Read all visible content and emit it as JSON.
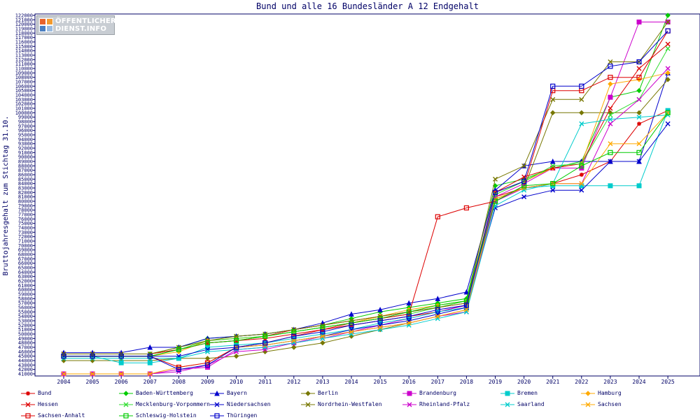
{
  "logo": {
    "line1": "ÖFFENTLICHER",
    "line2": "DIENST.INFO",
    "colors": [
      "#e8632b",
      "#f39a2e",
      "#4a7fc1",
      "#9bbbe0"
    ]
  },
  "chart_data": {
    "type": "line",
    "title": "Bund und alle 16 Bundesländer A 12 Endgehalt",
    "xlabel": "",
    "ylabel": "Bruttojahresgehalt zum Stichtag 31.10.",
    "ylim": [
      41000,
      122000
    ],
    "ytick_step": 1000,
    "grid": false,
    "legend_position": "bottom",
    "x": [
      "2004",
      "2005",
      "2006",
      "2007",
      "2008",
      "2009",
      "2010",
      "2011",
      "2012",
      "2013",
      "2014",
      "2015",
      "2016",
      "2017",
      "2018",
      "2019",
      "2020",
      "2021",
      "2022",
      "2023",
      "2024",
      "2025"
    ],
    "series": [
      {
        "name": "Bund",
        "color": "#dd0000",
        "marker": "star",
        "values": [
          45500,
          45500,
          45500,
          45500,
          46500,
          48000,
          48500,
          49000,
          50000,
          51000,
          52000,
          53000,
          54000,
          55000,
          56500,
          81000,
          83000,
          84000,
          86000,
          89000,
          97500,
          100500
        ]
      },
      {
        "name": "Baden-Württemberg",
        "color": "#00cc00",
        "marker": "diamond",
        "values": [
          45500,
          45500,
          45500,
          45500,
          47000,
          49000,
          49500,
          50000,
          51000,
          52000,
          53500,
          55000,
          56000,
          57000,
          58000,
          83500,
          85000,
          87500,
          89000,
          103500,
          105000,
          122000
        ]
      },
      {
        "name": "Bayern",
        "color": "#0000cc",
        "marker": "triangle",
        "values": [
          45800,
          45800,
          45800,
          47000,
          47000,
          49000,
          49500,
          50000,
          51000,
          52500,
          54500,
          55500,
          57000,
          58000,
          59500,
          82500,
          88000,
          89000,
          89000,
          89000,
          89000,
          109000
        ]
      },
      {
        "name": "Berlin",
        "color": "#777700",
        "marker": "diamond",
        "values": [
          44000,
          44000,
          44000,
          44000,
          44500,
          44500,
          45000,
          46000,
          47000,
          48000,
          49500,
          51000,
          52500,
          54000,
          55500,
          80500,
          83000,
          100000,
          100000,
          100000,
          100000,
          107500
        ]
      },
      {
        "name": "Brandenburg",
        "color": "#cc00cc",
        "marker": "square",
        "values": [
          41000,
          41000,
          41000,
          41000,
          42000,
          42500,
          46500,
          47000,
          48000,
          49500,
          50500,
          52000,
          53500,
          55000,
          56500,
          81000,
          84000,
          87500,
          87500,
          103500,
          120500,
          120500
        ]
      },
      {
        "name": "Bremen",
        "color": "#00cccc",
        "marker": "square",
        "values": [
          45000,
          45000,
          43500,
          43500,
          44500,
          47000,
          47500,
          48000,
          49000,
          50000,
          51000,
          52500,
          53500,
          55000,
          56000,
          80000,
          83000,
          83500,
          83500,
          83500,
          83500,
          100500
        ]
      },
      {
        "name": "Hamburg",
        "color": "#ffaa00",
        "marker": "diamond",
        "values": [
          45000,
          45000,
          45000,
          45000,
          46000,
          48500,
          49000,
          49500,
          50500,
          51500,
          52500,
          54000,
          55500,
          56500,
          57500,
          82000,
          84500,
          87500,
          88500,
          106500,
          107500,
          109000
        ]
      },
      {
        "name": "Hessen",
        "color": "#dd0000",
        "marker": "x",
        "values": [
          45500,
          45500,
          45500,
          45500,
          46500,
          48000,
          48500,
          49500,
          51000,
          52000,
          53000,
          54000,
          55000,
          56000,
          57000,
          82000,
          85500,
          87500,
          88500,
          101000,
          110000,
          115500
        ]
      },
      {
        "name": "Mecklenburg-Vorpommern",
        "color": "#33dd33",
        "marker": "x",
        "values": [
          45000,
          45000,
          45000,
          45000,
          46500,
          48500,
          49000,
          49500,
          50500,
          51500,
          52500,
          53500,
          54500,
          56000,
          57500,
          81500,
          84500,
          88000,
          88500,
          99500,
          103000,
          114500
        ]
      },
      {
        "name": "Niedersachsen",
        "color": "#0000cc",
        "marker": "x",
        "values": [
          45000,
          45000,
          45000,
          45000,
          45000,
          46500,
          47000,
          47500,
          48500,
          49500,
          51000,
          52000,
          53000,
          54500,
          56000,
          78500,
          81000,
          82500,
          82500,
          89000,
          89000,
          97500
        ]
      },
      {
        "name": "Nordrhein-Westfalen",
        "color": "#777700",
        "marker": "x",
        "values": [
          45500,
          45500,
          45500,
          45500,
          47000,
          48500,
          49500,
          50000,
          51000,
          52000,
          53000,
          54000,
          55000,
          56000,
          57000,
          85000,
          88000,
          103000,
          103000,
          111500,
          111500,
          120500
        ]
      },
      {
        "name": "Rheinland-Pfalz",
        "color": "#cc00cc",
        "marker": "x",
        "values": [
          41000,
          41000,
          41000,
          41000,
          41500,
          43000,
          46000,
          46500,
          48000,
          49000,
          50500,
          51500,
          52500,
          54000,
          55000,
          80000,
          83000,
          84000,
          84000,
          97500,
          103000,
          110000
        ]
      },
      {
        "name": "Saarland",
        "color": "#00cccc",
        "marker": "x",
        "values": [
          44500,
          44500,
          44500,
          44500,
          44500,
          46000,
          46500,
          47000,
          48000,
          49000,
          50000,
          51000,
          52000,
          53500,
          55000,
          79000,
          82500,
          84000,
          97500,
          98500,
          99000,
          99500
        ]
      },
      {
        "name": "Sachsen",
        "color": "#ffaa00",
        "marker": "x",
        "values": [
          41000,
          41000,
          41000,
          41000,
          42500,
          43500,
          47000,
          47500,
          48500,
          49500,
          50500,
          51500,
          52500,
          54000,
          55500,
          80500,
          83000,
          84000,
          84000,
          93000,
          93000,
          100000
        ]
      },
      {
        "name": "Sachsen-Anhalt",
        "color": "#dd0000",
        "marker": "square-open",
        "values": [
          45000,
          45000,
          45000,
          45000,
          42500,
          43500,
          47000,
          48000,
          49500,
          51000,
          52500,
          53500,
          54500,
          76500,
          78500,
          80000,
          83500,
          105000,
          105000,
          108000,
          108000,
          118500
        ]
      },
      {
        "name": "Schleswig-Holstein",
        "color": "#00cc00",
        "marker": "square-open",
        "values": [
          45000,
          45000,
          45000,
          45000,
          46500,
          48000,
          48500,
          49500,
          50500,
          51500,
          52500,
          53500,
          55000,
          56500,
          57500,
          80000,
          83500,
          84000,
          88000,
          91000,
          91000,
          100000
        ]
      },
      {
        "name": "Thüringen",
        "color": "#0000cc",
        "marker": "square-open",
        "values": [
          45000,
          45000,
          45000,
          45000,
          42000,
          43000,
          47000,
          48000,
          49500,
          50500,
          52000,
          53000,
          54000,
          55500,
          56500,
          82000,
          84500,
          106000,
          106000,
          110500,
          111500,
          118500
        ]
      }
    ]
  }
}
